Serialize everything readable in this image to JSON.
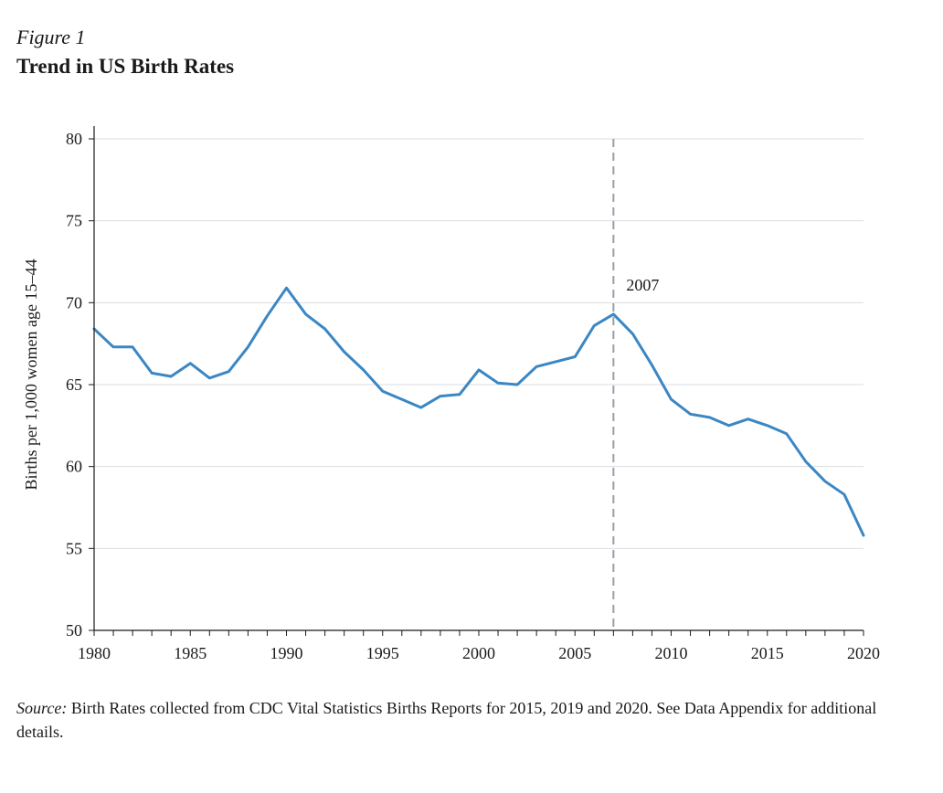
{
  "figure_label": "Figure 1",
  "figure_title": "Trend in US Birth Rates",
  "source_label": "Source:",
  "source_text": " Birth Rates collected from CDC Vital Statistics Births Reports for 2015, 2019 and 2020. See Data Appendix for additional details.",
  "colors": {
    "line": "#3b87c4",
    "vline": "#9a9fa6",
    "grid": "#d9dde3",
    "axis": "#1a1a1a"
  },
  "chart_data": {
    "type": "line",
    "title": "Trend in US Birth Rates",
    "xlabel": "",
    "ylabel": "Births per 1,000 women age 15–44",
    "xlim": [
      1980,
      2020
    ],
    "ylim": [
      50,
      80
    ],
    "xticks": [
      1980,
      1985,
      1990,
      1995,
      2000,
      2005,
      2010,
      2015,
      2020
    ],
    "yticks": [
      50,
      55,
      60,
      65,
      70,
      75,
      80
    ],
    "grid": true,
    "x": [
      1980,
      1981,
      1982,
      1983,
      1984,
      1985,
      1986,
      1987,
      1988,
      1989,
      1990,
      1991,
      1992,
      1993,
      1994,
      1995,
      1996,
      1997,
      1998,
      1999,
      2000,
      2001,
      2002,
      2003,
      2004,
      2005,
      2006,
      2007,
      2008,
      2009,
      2010,
      2011,
      2012,
      2013,
      2014,
      2015,
      2016,
      2017,
      2018,
      2019,
      2020
    ],
    "series": [
      {
        "values": [
          68.4,
          67.3,
          67.3,
          65.7,
          65.5,
          66.3,
          65.4,
          65.8,
          67.3,
          69.2,
          70.9,
          69.3,
          68.4,
          67.0,
          65.9,
          64.6,
          64.1,
          63.6,
          64.3,
          64.4,
          65.9,
          65.1,
          65.0,
          66.1,
          66.4,
          66.7,
          68.6,
          69.3,
          68.1,
          66.2,
          64.1,
          63.2,
          63.0,
          62.5,
          62.9,
          62.5,
          62.0,
          60.3,
          59.1,
          58.3,
          55.8
        ]
      }
    ],
    "annotations": [
      {
        "type": "vline",
        "x": 2007,
        "label": "2007"
      }
    ]
  }
}
